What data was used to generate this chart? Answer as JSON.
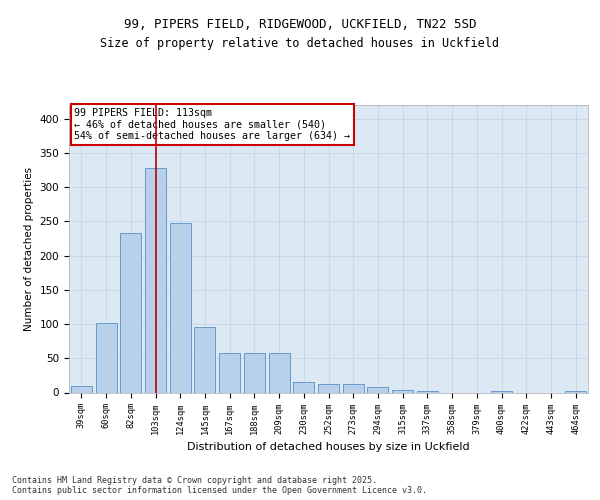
{
  "title1": "99, PIPERS FIELD, RIDGEWOOD, UCKFIELD, TN22 5SD",
  "title2": "Size of property relative to detached houses in Uckfield",
  "xlabel": "Distribution of detached houses by size in Uckfield",
  "ylabel": "Number of detached properties",
  "categories": [
    "39sqm",
    "60sqm",
    "82sqm",
    "103sqm",
    "124sqm",
    "145sqm",
    "167sqm",
    "188sqm",
    "209sqm",
    "230sqm",
    "252sqm",
    "273sqm",
    "294sqm",
    "315sqm",
    "337sqm",
    "358sqm",
    "379sqm",
    "400sqm",
    "422sqm",
    "443sqm",
    "464sqm"
  ],
  "values": [
    10,
    102,
    233,
    328,
    248,
    96,
    57,
    57,
    57,
    15,
    13,
    13,
    8,
    4,
    2,
    0,
    0,
    2,
    0,
    0,
    2
  ],
  "bar_color": "#b8d0ea",
  "bar_edge_color": "#6699cc",
  "bar_edge_width": 0.7,
  "grid_color": "#c5d5e5",
  "bg_color": "#dce8f4",
  "vline_x": 3.0,
  "vline_color": "#bb0000",
  "annotation_text": "99 PIPERS FIELD: 113sqm\n← 46% of detached houses are smaller (540)\n54% of semi-detached houses are larger (634) →",
  "annotation_box_color": "#ffffff",
  "annotation_box_edge": "#cc0000",
  "footer": "Contains HM Land Registry data © Crown copyright and database right 2025.\nContains public sector information licensed under the Open Government Licence v3.0.",
  "ylim": [
    0,
    420
  ],
  "yticks": [
    0,
    50,
    100,
    150,
    200,
    250,
    300,
    350,
    400
  ]
}
